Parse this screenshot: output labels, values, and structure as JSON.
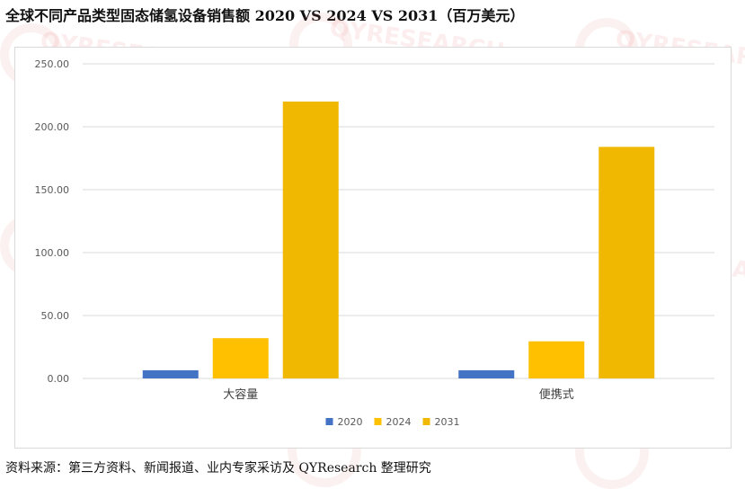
{
  "title": "全球不同产品类型固态储氢设备销售额 2020 VS 2024 VS 2031（百万美元）",
  "footer": "资料来源：第三方资料、新闻报道、业内专家采访及 QYResearch 整理研究",
  "watermark": "QYRESEARCH",
  "colors": {
    "2020": "#4472c4",
    "2024": "#ffc000",
    "2031": "#f0b800"
  },
  "chart_data": {
    "type": "bar",
    "categories": [
      "大容量",
      "便携式"
    ],
    "series": [
      {
        "name": "2020",
        "values": [
          6.5,
          6.5
        ]
      },
      {
        "name": "2024",
        "values": [
          32,
          29.5
        ]
      },
      {
        "name": "2031",
        "values": [
          220,
          184
        ]
      }
    ],
    "ylim": [
      0,
      250
    ],
    "yticks": [
      "0.00",
      "50.00",
      "100.00",
      "150.00",
      "200.00",
      "250.00"
    ],
    "grid": true,
    "legend_position": "bottom-center"
  }
}
